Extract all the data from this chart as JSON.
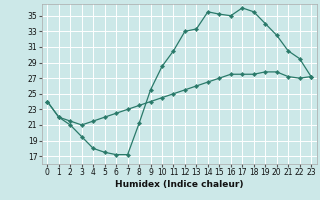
{
  "title": "",
  "xlabel": "Humidex (Indice chaleur)",
  "ylabel": "",
  "bg_color": "#cce8e8",
  "grid_color": "#ffffff",
  "line_color": "#2a7a6a",
  "xlim": [
    -0.5,
    23.5
  ],
  "ylim": [
    16,
    36.5
  ],
  "xticks": [
    0,
    1,
    2,
    3,
    4,
    5,
    6,
    7,
    8,
    9,
    10,
    11,
    12,
    13,
    14,
    15,
    16,
    17,
    18,
    19,
    20,
    21,
    22,
    23
  ],
  "yticks": [
    17,
    19,
    21,
    23,
    25,
    27,
    29,
    31,
    33,
    35
  ],
  "series1_x": [
    0,
    1,
    2,
    3,
    4,
    5,
    6,
    7,
    8,
    9,
    10,
    11,
    12,
    13,
    14,
    15,
    16,
    17,
    18,
    19,
    20,
    21,
    22,
    23
  ],
  "series1_y": [
    24.0,
    22.0,
    21.0,
    19.5,
    18.0,
    17.5,
    17.2,
    17.2,
    21.2,
    25.5,
    28.5,
    30.5,
    33.0,
    33.3,
    35.5,
    35.2,
    35.0,
    36.0,
    35.5,
    34.0,
    32.5,
    30.5,
    29.5,
    27.2
  ],
  "series2_x": [
    0,
    1,
    2,
    3,
    4,
    5,
    6,
    7,
    8,
    9,
    10,
    11,
    12,
    13,
    14,
    15,
    16,
    17,
    18,
    19,
    20,
    21,
    22,
    23
  ],
  "series2_y": [
    24.0,
    22.0,
    21.5,
    21.0,
    21.5,
    22.0,
    22.5,
    23.0,
    23.5,
    24.0,
    24.5,
    25.0,
    25.5,
    26.0,
    26.5,
    27.0,
    27.5,
    27.5,
    27.5,
    27.8,
    27.8,
    27.2,
    27.0,
    27.2
  ],
  "tick_fontsize": 5.5,
  "xlabel_fontsize": 6.5,
  "marker_size": 2.2
}
